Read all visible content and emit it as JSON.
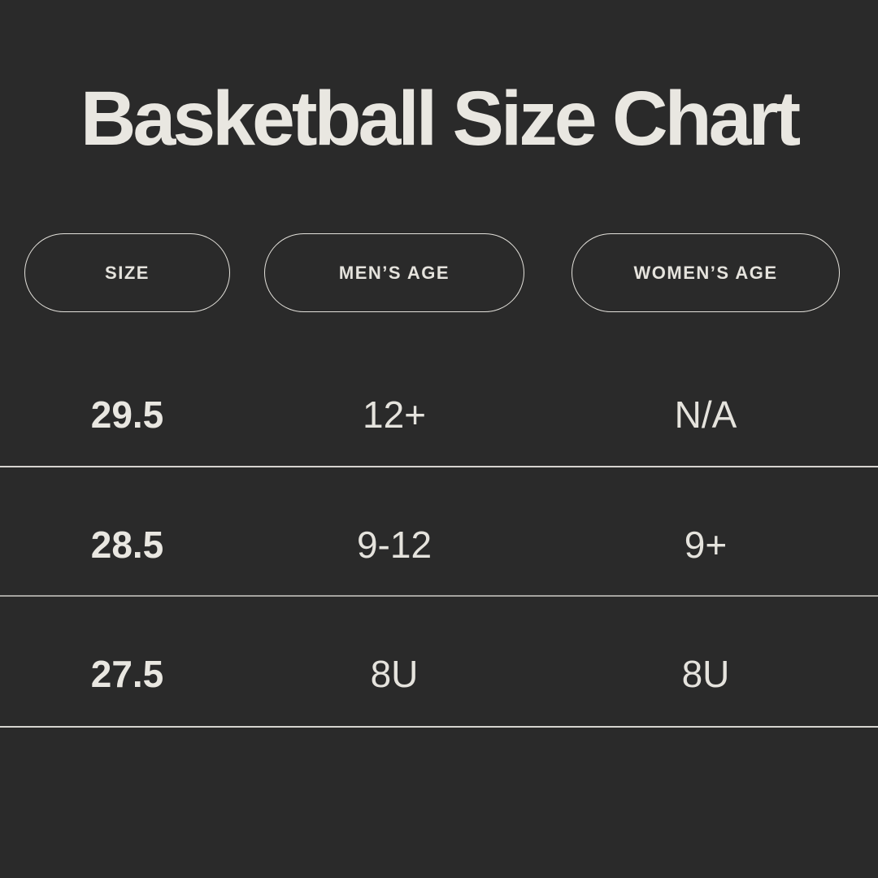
{
  "colors": {
    "background": "#2A2A2A",
    "text": "#E9E7E1",
    "muted_text": "#E5E3DD",
    "divider": "#D6D4CF",
    "pill_border": "#E3E1DB"
  },
  "chart_data": {
    "type": "table",
    "title": "Basketball Size Chart",
    "columns": [
      "SIZE",
      "MEN’S AGE",
      "WOMEN’S AGE"
    ],
    "rows": [
      [
        "29.5",
        "12+",
        "N/A"
      ],
      [
        "28.5",
        "9-12",
        "9+"
      ],
      [
        "27.5",
        "8U",
        "8U"
      ]
    ]
  }
}
